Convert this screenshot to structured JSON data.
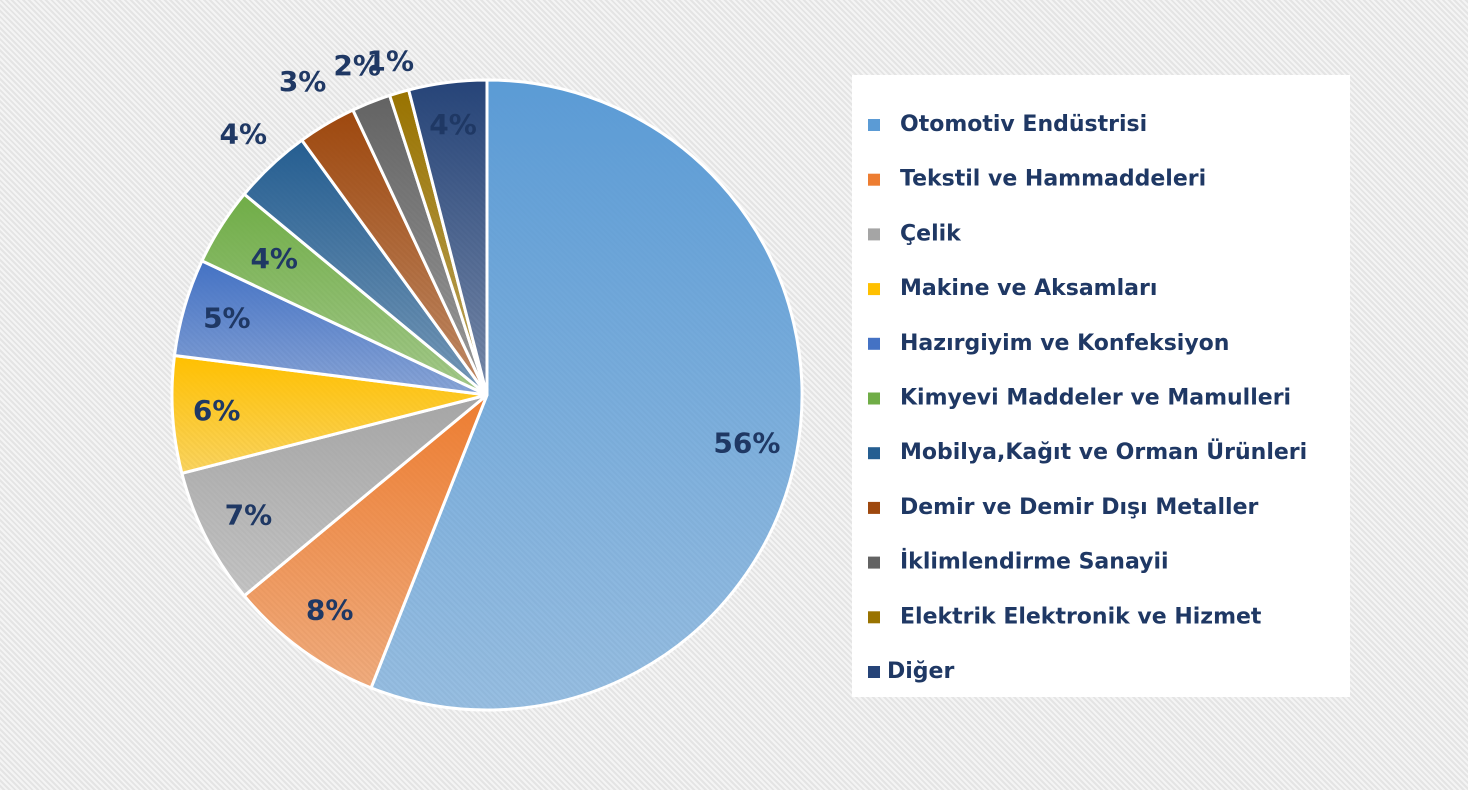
{
  "chart_data": {
    "type": "pie",
    "categories": [
      "Otomotiv Endüstrisi",
      "Tekstil ve Hammaddeleri",
      "Çelik",
      "Makine ve Aksamları",
      "Hazırgiyim ve Konfeksiyon",
      "Kimyevi Maddeler ve Mamulleri",
      "Mobilya,Kağıt ve Orman Ürünleri",
      "Demir ve Demir Dışı Metaller",
      "İklimlendirme Sanayii",
      "Elektrik Elektronik ve Hizmet",
      "Diğer"
    ],
    "values": [
      56,
      8,
      7,
      6,
      5,
      4,
      4,
      3,
      2,
      1,
      4
    ],
    "value_labels": [
      "56%",
      "8%",
      "7%",
      "6%",
      "5%",
      "4%",
      "4%",
      "3%",
      "2%",
      "1%",
      "4%"
    ],
    "colors": [
      "#5b9bd5",
      "#ed7d31",
      "#a5a5a5",
      "#ffc000",
      "#4472c4",
      "#70ad47",
      "#255e91",
      "#9e480e",
      "#636363",
      "#997300",
      "#264478"
    ],
    "legend": "right"
  }
}
